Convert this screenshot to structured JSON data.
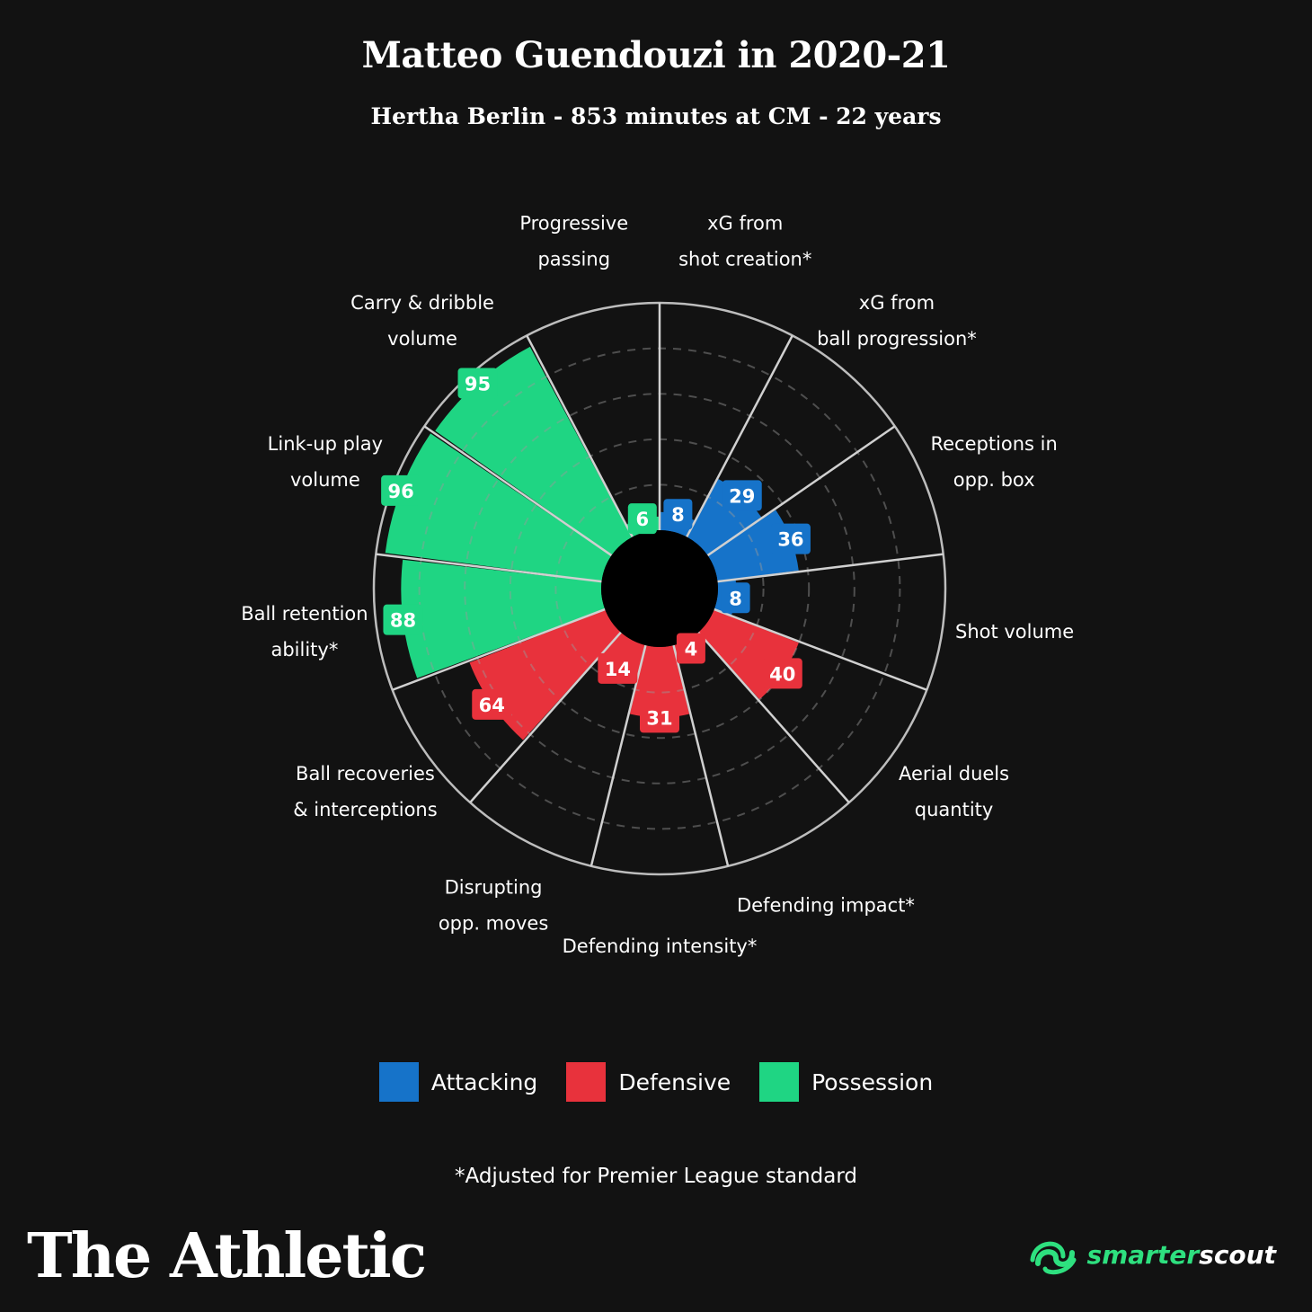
{
  "header": {
    "title": "Matteo Guendouzi in 2020-21",
    "subtitle": "Hertha Berlin - 853 minutes at CM - 22 years"
  },
  "colors": {
    "attacking": "#1673c9",
    "defensive": "#e8323c",
    "possession": "#1fd583",
    "background": "#121212"
  },
  "chart_data": {
    "type": "polar-bar",
    "title": "Matteo Guendouzi in 2020-21",
    "subtitle": "Hertha Berlin - 853 minutes at CM - 22 years",
    "rlim": [
      0,
      100
    ],
    "grid": true,
    "legend_position": "bottom",
    "categories": [
      {
        "label": [
          "xG from",
          "shot creation*"
        ],
        "value": 8,
        "group": "attacking"
      },
      {
        "label": [
          "xG from",
          "ball progression*"
        ],
        "value": 29,
        "group": "attacking"
      },
      {
        "label": [
          "Receptions in",
          "opp. box"
        ],
        "value": 36,
        "group": "attacking"
      },
      {
        "label": [
          "Shot volume"
        ],
        "value": 8,
        "group": "attacking"
      },
      {
        "label": [
          "Aerial duels",
          "quantity"
        ],
        "value": 40,
        "group": "defensive"
      },
      {
        "label": [
          "Defending impact*"
        ],
        "value": 4,
        "group": "defensive"
      },
      {
        "label": [
          "Defending intensity*"
        ],
        "value": 31,
        "group": "defensive"
      },
      {
        "label": [
          "Disrupting",
          "opp. moves"
        ],
        "value": 14,
        "group": "defensive"
      },
      {
        "label": [
          "Ball recoveries",
          "& interceptions"
        ],
        "value": 64,
        "group": "defensive"
      },
      {
        "label": [
          "Ball retention",
          "ability*"
        ],
        "value": 88,
        "group": "possession"
      },
      {
        "label": [
          "Link-up play",
          "volume"
        ],
        "value": 96,
        "group": "possession"
      },
      {
        "label": [
          "Carry & dribble",
          "volume"
        ],
        "value": 95,
        "group": "possession"
      },
      {
        "label": [
          "Progressive",
          "passing"
        ],
        "value": 6,
        "group": "possession"
      }
    ]
  },
  "legend": [
    {
      "name": "Attacking",
      "group": "attacking"
    },
    {
      "name": "Defensive",
      "group": "defensive"
    },
    {
      "name": "Possession",
      "group": "possession"
    }
  ],
  "footnote": "*Adjusted for Premier League standard",
  "brand": {
    "left": "The Athletic",
    "right_part1": "smarter",
    "right_part2": "scout",
    "right_icon": "smarterscout-logo-icon"
  }
}
